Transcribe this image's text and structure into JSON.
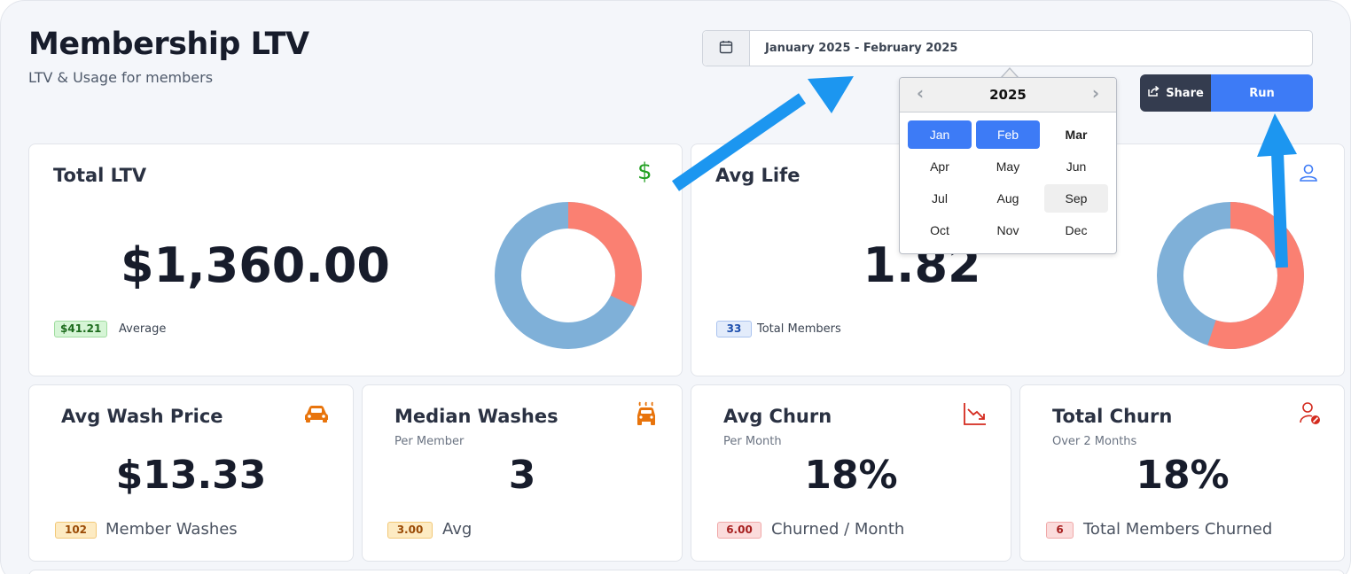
{
  "header": {
    "title": "Membership LTV",
    "subtitle": "LTV & Usage for members"
  },
  "date_range": {
    "value": "January 2025 - February 2025",
    "calendar_icon": "calendar-icon"
  },
  "actions": {
    "share_label": "Share",
    "run_label": "Run",
    "share_icon": "share-icon"
  },
  "month_picker": {
    "year": "2025",
    "prev_icon": "chevron-left-icon",
    "next_icon": "chevron-right-icon",
    "months": [
      "Jan",
      "Feb",
      "Mar",
      "Apr",
      "May",
      "Jun",
      "Jul",
      "Aug",
      "Sep",
      "Oct",
      "Nov",
      "Dec"
    ],
    "selected": [
      "Jan",
      "Feb"
    ],
    "current": "Mar",
    "hovered": "Sep"
  },
  "cards": {
    "total_ltv": {
      "title": "Total LTV",
      "value": "$1,360.00",
      "badge": "$41.21",
      "badge_label": "Average",
      "icon": "dollar-icon",
      "donut": {
        "coral_fraction": 0.32,
        "blue_fraction": 0.68
      }
    },
    "avg_life": {
      "title": "Avg Life",
      "value": "1.82",
      "badge": "33",
      "badge_label": "Total Members",
      "icon": "user-icon",
      "donut": {
        "coral_fraction": 0.55,
        "blue_fraction": 0.45
      }
    },
    "avg_wash_price": {
      "title": "Avg Wash Price",
      "value": "$13.33",
      "badge": "102",
      "badge_label": "Member Washes",
      "icon": "car-icon"
    },
    "median_washes": {
      "title": "Median Washes",
      "subtitle": "Per Member",
      "value": "3",
      "badge": "3.00",
      "badge_label": "Avg",
      "icon": "car-wash-icon"
    },
    "avg_churn": {
      "title": "Avg Churn",
      "subtitle": "Per Month",
      "value": "18%",
      "badge": "6.00",
      "badge_label": "Churned / Month",
      "icon": "trending-down-icon"
    },
    "total_churn": {
      "title": "Total Churn",
      "subtitle": "Over 2 Months",
      "value": "18%",
      "badge": "6",
      "badge_label": "Total Members Churned",
      "icon": "user-remove-icon"
    }
  },
  "colors": {
    "accent_blue": "#3d7bf6",
    "donut_coral": "#fa8072",
    "donut_blue": "#7fb0d8",
    "annotation_arrow": "#1c96f0"
  }
}
